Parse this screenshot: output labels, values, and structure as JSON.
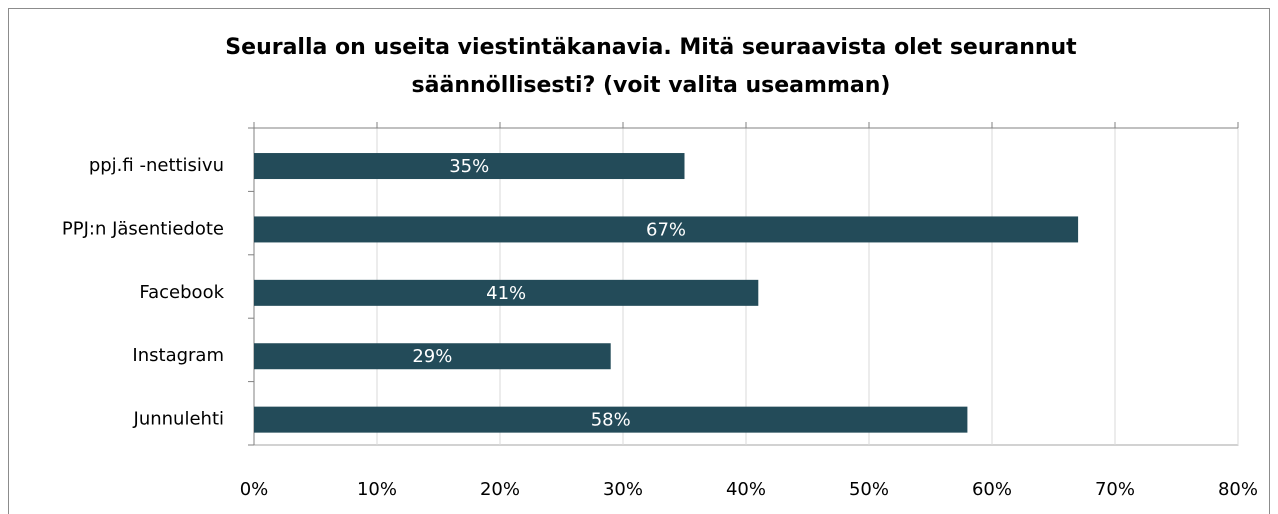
{
  "chart_data": {
    "type": "bar",
    "orientation": "horizontal",
    "title": [
      "Seuralla on useita viestintäkanavia. Mitä seuraavista olet seurannut",
      "säännöllisesti? (voit valita useamman)"
    ],
    "categories": [
      "ppj.fi -nettisivu",
      "PPJ:n Jäsentiedote",
      "Facebook",
      "Instagram",
      "Junnulehti"
    ],
    "values": [
      35,
      67,
      41,
      29,
      58
    ],
    "value_labels": [
      "35%",
      "67%",
      "41%",
      "29%",
      "58%"
    ],
    "color": "#234b59",
    "xlim": [
      0,
      80
    ],
    "xticks": [
      {
        "value": 0,
        "label": "0%"
      },
      {
        "value": 10,
        "label": "10%"
      },
      {
        "value": 20,
        "label": "20%"
      },
      {
        "value": 30,
        "label": "30%"
      },
      {
        "value": 40,
        "label": "40%"
      },
      {
        "value": 50,
        "label": "50%"
      },
      {
        "value": 60,
        "label": "60%"
      },
      {
        "value": 70,
        "label": "70%"
      },
      {
        "value": 80,
        "label": "80%"
      }
    ],
    "grid": true
  }
}
